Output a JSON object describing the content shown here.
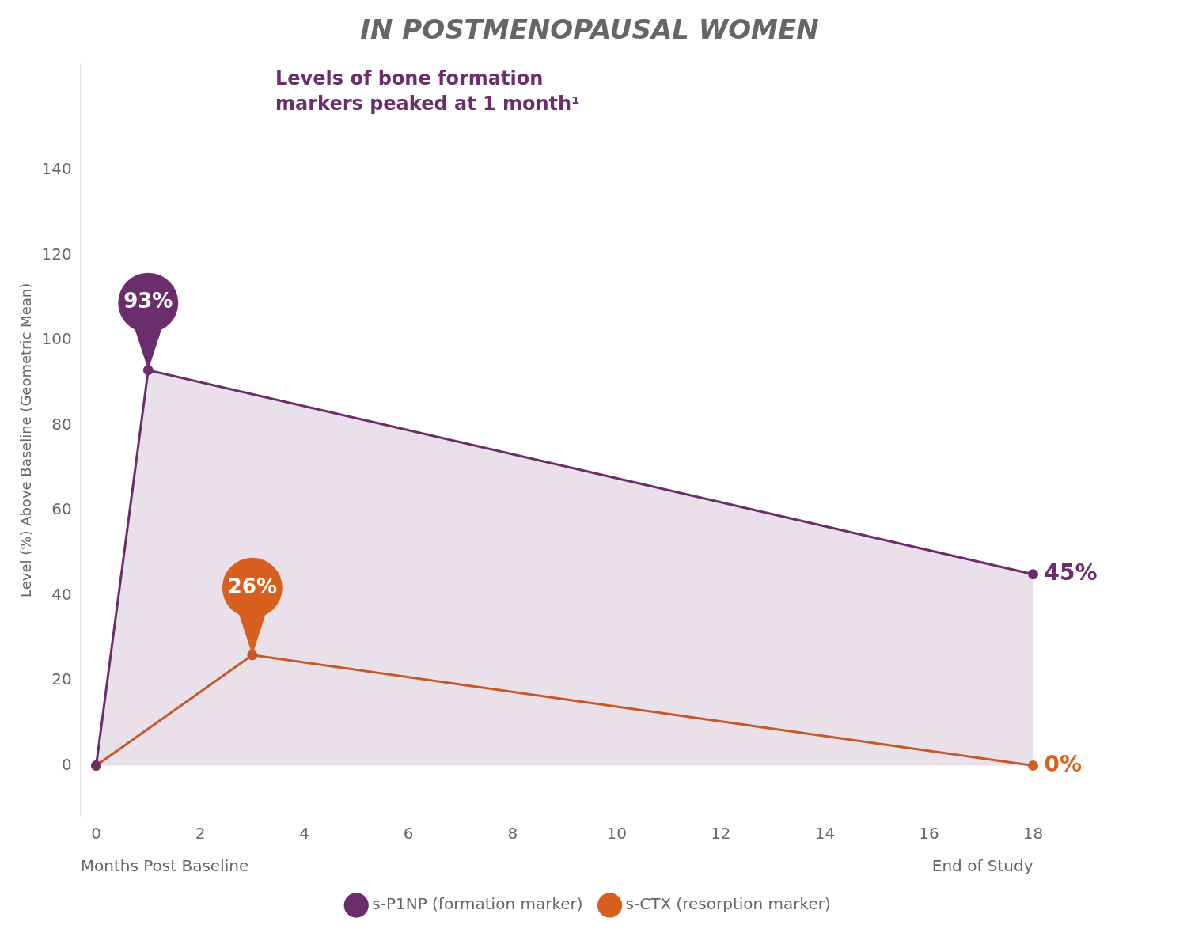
{
  "chart_data": {
    "type": "line",
    "title": "IN POSTMENOPAUSAL WOMEN",
    "xlabel": "Months Post Baseline",
    "ylabel": "Level (%) Above Baseline (Geometric Mean)",
    "series": [
      {
        "name": "s-P1NP (formation marker)",
        "color": "#6b2d6b",
        "type": "area",
        "marker": "circle",
        "x": [
          0,
          1,
          18
        ],
        "values": [
          0,
          93,
          45
        ]
      },
      {
        "name": "s-CTX (resorption marker)",
        "color": "#d95f1e",
        "type": "line",
        "marker": "circle",
        "x": [
          0,
          3,
          18
        ],
        "values": [
          0,
          26,
          0
        ]
      }
    ],
    "xlim": [
      -0.3,
      20.5
    ],
    "ylim": [
      -12,
      165
    ],
    "xticks": [
      0,
      2,
      4,
      6,
      8,
      10,
      12,
      14,
      16,
      18
    ],
    "yticks": [
      0,
      20,
      40,
      60,
      80,
      100,
      120,
      140
    ],
    "grid": false,
    "legend": "bottom",
    "annotations": [
      {
        "text": "93%",
        "x": 1,
        "y": 93,
        "color": "#6b2d6b",
        "marker": "pin"
      },
      {
        "text": "26%",
        "x": 3,
        "y": 26,
        "color": "#d95f1e",
        "marker": "pin"
      },
      {
        "text": "45%",
        "x": 18,
        "y": 45,
        "color": "#6b2d6b"
      },
      {
        "text": "0%",
        "x": 18,
        "y": 0,
        "color": "#d95f1e"
      },
      {
        "text": "Levels of bone formation\nmarkers peaked at 1 month¹",
        "color": "#6b2d6b"
      },
      {
        "text": "End of Study",
        "x": 18
      }
    ]
  }
}
